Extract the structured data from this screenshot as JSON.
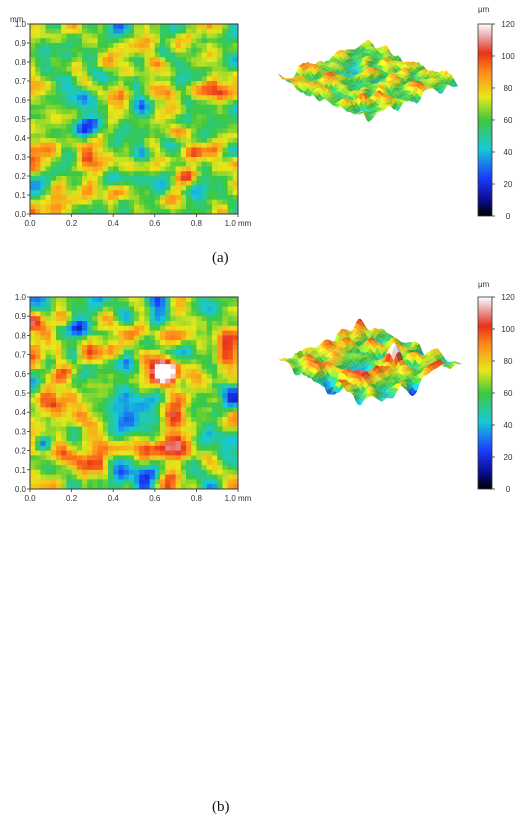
{
  "panels": [
    {
      "id": "a",
      "caption": "(a)",
      "unit_axis": "mm",
      "x_ticks": [
        "0.0",
        "0.2",
        "0.4",
        "0.6",
        "0.8",
        "1.0 mm"
      ],
      "y_ticks": [
        "0.0",
        "0.1",
        "0.2",
        "0.3",
        "0.4",
        "0.5",
        "0.6",
        "0.7",
        "0.8",
        "0.9",
        "1.0"
      ],
      "colorbar": {
        "unit": "μm",
        "ticks": [
          "0",
          "20",
          "40",
          "60",
          "80",
          "100",
          "120"
        ]
      }
    },
    {
      "id": "b",
      "caption": "(b)",
      "unit_axis": "mm",
      "x_ticks": [
        "0.0",
        "0.2",
        "0.4",
        "0.6",
        "0.8",
        "1.0 mm"
      ],
      "y_ticks": [
        "0.0",
        "0.1",
        "0.2",
        "0.3",
        "0.4",
        "0.5",
        "0.6",
        "0.7",
        "0.8",
        "0.9",
        "1.0"
      ],
      "colorbar": {
        "unit": "μm",
        "ticks": [
          "0",
          "20",
          "40",
          "60",
          "80",
          "100",
          "120"
        ]
      }
    }
  ],
  "colors": {
    "low": "#000066",
    "blue": "#1a3cff",
    "cyan": "#18c8d8",
    "green": "#3ec83e",
    "yellow": "#e8e81a",
    "orange": "#ff8a1a",
    "red": "#e8321a",
    "high": "#ffffff"
  }
}
